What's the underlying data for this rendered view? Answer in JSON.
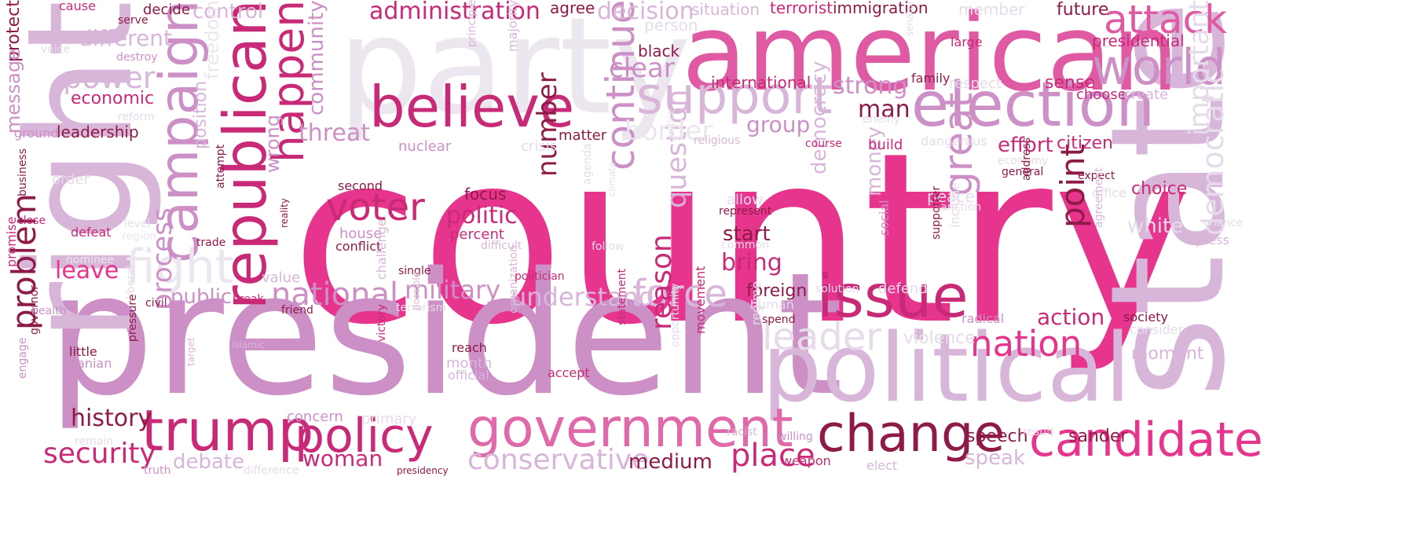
{
  "palette": {
    "magenta": "#e7348d",
    "pink": "#df5aa3",
    "medium_pink": "#e06aa9",
    "deep_rose": "#c92a77",
    "burgundy": "#8e1a48",
    "dark_burgundy": "#7a0f3e",
    "mauve": "#cc8fc6",
    "lilac": "#d8b6d9",
    "pale_lilac": "#e6dbea",
    "very_pale": "#ece6ef",
    "background": "#ffffff"
  },
  "words": [
    {
      "text": "country",
      "color": "magenta"
    },
    {
      "text": "president",
      "color": "mauve"
    },
    {
      "text": "party",
      "color": "very_pale"
    },
    {
      "text": "state",
      "color": "lilac"
    },
    {
      "text": "american",
      "color": "pink"
    },
    {
      "text": "political",
      "color": "lilac"
    },
    {
      "text": "right",
      "color": "lilac"
    },
    {
      "text": "republican",
      "color": "deep_rose"
    },
    {
      "text": "government",
      "color": "medium_pink"
    },
    {
      "text": "campaign",
      "color": "mauve"
    },
    {
      "text": "election",
      "color": "mauve"
    },
    {
      "text": "support",
      "color": "lilac"
    },
    {
      "text": "believe",
      "color": "deep_rose"
    },
    {
      "text": "change",
      "color": "burgundy"
    },
    {
      "text": "trump",
      "color": "deep_rose"
    },
    {
      "text": "issue",
      "color": "deep_rose"
    },
    {
      "text": "policy",
      "color": "deep_rose"
    },
    {
      "text": "candidate",
      "color": "magenta"
    },
    {
      "text": "world",
      "color": "mauve"
    },
    {
      "text": "attack",
      "color": "pink"
    },
    {
      "text": "great",
      "color": "mauve"
    },
    {
      "text": "happen",
      "color": "deep_rose"
    },
    {
      "text": "continue",
      "color": "mauve"
    },
    {
      "text": "leader",
      "color": "pale_lilac"
    },
    {
      "text": "nation",
      "color": "magenta"
    },
    {
      "text": "fight",
      "color": "very_pale"
    },
    {
      "text": "point",
      "color": "burgundy"
    },
    {
      "text": "important",
      "color": "pale_lilac"
    },
    {
      "text": "democratic",
      "color": "pale_lilac"
    },
    {
      "text": "problem",
      "color": "burgundy"
    },
    {
      "text": "force",
      "color": "lilac"
    },
    {
      "text": "voter",
      "color": "deep_rose"
    },
    {
      "text": "power",
      "color": "lilac"
    },
    {
      "text": "security",
      "color": "deep_rose"
    },
    {
      "text": "conservative",
      "color": "lilac"
    },
    {
      "text": "place",
      "color": "deep_rose"
    },
    {
      "text": "national",
      "color": "mauve"
    },
    {
      "text": "military",
      "color": "mauve"
    },
    {
      "text": "understand",
      "color": "lilac"
    },
    {
      "text": "process",
      "color": "mauve"
    },
    {
      "text": "reason",
      "color": "deep_rose"
    },
    {
      "text": "number",
      "color": "burgundy"
    },
    {
      "text": "question",
      "color": "lilac"
    },
    {
      "text": "clear",
      "color": "mauve"
    },
    {
      "text": "administration",
      "color": "deep_rose"
    },
    {
      "text": "decision",
      "color": "lilac"
    },
    {
      "text": "community",
      "color": "mauve"
    },
    {
      "text": "different",
      "color": "lilac"
    },
    {
      "text": "control",
      "color": "lilac"
    },
    {
      "text": "politic",
      "color": "deep_rose"
    },
    {
      "text": "strong",
      "color": "mauve"
    },
    {
      "text": "man",
      "color": "burgundy"
    },
    {
      "text": "group",
      "color": "mauve"
    },
    {
      "text": "threat",
      "color": "mauve"
    },
    {
      "text": "border",
      "color": "very_pale"
    },
    {
      "text": "effort",
      "color": "deep_rose"
    },
    {
      "text": "citizen",
      "color": "deep_rose"
    },
    {
      "text": "history",
      "color": "burgundy"
    },
    {
      "text": "leave",
      "color": "magenta"
    },
    {
      "text": "public",
      "color": "mauve"
    },
    {
      "text": "bring",
      "color": "deep_rose"
    },
    {
      "text": "start",
      "color": "burgundy"
    },
    {
      "text": "democracy",
      "color": "lilac"
    },
    {
      "text": "money",
      "color": "lilac"
    },
    {
      "text": "woman",
      "color": "deep_rose"
    },
    {
      "text": "medium",
      "color": "burgundy"
    },
    {
      "text": "action",
      "color": "deep_rose"
    },
    {
      "text": "sander",
      "color": "burgundy"
    },
    {
      "text": "speech",
      "color": "burgundy"
    },
    {
      "text": "speak",
      "color": "lilac"
    },
    {
      "text": "debate",
      "color": "lilac"
    },
    {
      "text": "moment",
      "color": "lilac"
    },
    {
      "text": "choice",
      "color": "deep_rose"
    },
    {
      "text": "white",
      "color": "pale_lilac"
    },
    {
      "text": "freedom",
      "color": "very_pale"
    },
    {
      "text": "protect",
      "color": "burgundy"
    },
    {
      "text": "message",
      "color": "mauve"
    },
    {
      "text": "economic",
      "color": "deep_rose"
    },
    {
      "text": "leadership",
      "color": "burgundy"
    },
    {
      "text": "position",
      "color": "lilac"
    },
    {
      "text": "wrong",
      "color": "mauve"
    },
    {
      "text": "foreign",
      "color": "burgundy"
    },
    {
      "text": "violence",
      "color": "pale_lilac"
    },
    {
      "text": "immigration",
      "color": "burgundy"
    },
    {
      "text": "terrorist",
      "color": "deep_rose"
    },
    {
      "text": "international",
      "color": "deep_rose"
    },
    {
      "text": "presidential",
      "color": "deep_rose"
    },
    {
      "text": "future",
      "color": "burgundy"
    },
    {
      "text": "sense",
      "color": "deep_rose"
    },
    {
      "text": "situation",
      "color": "lilac"
    },
    {
      "text": "agree",
      "color": "burgundy"
    },
    {
      "text": "member",
      "color": "pale_lilac"
    },
    {
      "text": "black",
      "color": "burgundy"
    },
    {
      "text": "person",
      "color": "pale_lilac"
    },
    {
      "text": "large",
      "color": "deep_rose"
    },
    {
      "text": "family",
      "color": "burgundy"
    },
    {
      "text": "respect",
      "color": "pale_lilac"
    },
    {
      "text": "choose",
      "color": "deep_rose"
    },
    {
      "text": "create",
      "color": "lilac"
    },
    {
      "text": "build",
      "color": "deep_rose"
    },
    {
      "text": "dangerous",
      "color": "pale_lilac"
    },
    {
      "text": "economy",
      "color": "pale_lilac"
    },
    {
      "text": "general",
      "color": "burgundy"
    },
    {
      "text": "expect",
      "color": "burgundy"
    },
    {
      "text": "office",
      "color": "pale_lilac"
    },
    {
      "text": "peace",
      "color": "pale_lilac"
    },
    {
      "text": "sanction",
      "color": "pale_lilac"
    },
    {
      "text": "address",
      "color": "burgundy"
    },
    {
      "text": "chance",
      "color": "pale_lilac"
    },
    {
      "text": "press",
      "color": "lilac"
    },
    {
      "text": "agreement",
      "color": "lilac"
    },
    {
      "text": "society",
      "color": "burgundy"
    },
    {
      "text": "consider",
      "color": "pale_lilac"
    },
    {
      "text": "radical",
      "color": "mauve"
    },
    {
      "text": "supporter",
      "color": "burgundy"
    },
    {
      "text": "include",
      "color": "pale_lilac"
    },
    {
      "text": "social",
      "color": "mauve"
    },
    {
      "text": "defend",
      "color": "pale_lilac"
    },
    {
      "text": "solution",
      "color": "pale_lilac"
    },
    {
      "text": "human",
      "color": "pale_lilac"
    },
    {
      "text": "spend",
      "color": "burgundy"
    },
    {
      "text": "regime",
      "color": "pale_lilac"
    },
    {
      "text": "racist",
      "color": "lilac"
    },
    {
      "text": "willing",
      "color": "mauve"
    },
    {
      "text": "weapon",
      "color": "deep_rose"
    },
    {
      "text": "elect",
      "color": "lilac"
    },
    {
      "text": "result",
      "color": "pale_lilac"
    },
    {
      "text": "represent",
      "color": "burgundy"
    },
    {
      "text": "common",
      "color": "pale_lilac"
    },
    {
      "text": "allow",
      "color": "pale_lilac"
    },
    {
      "text": "course",
      "color": "deep_rose"
    },
    {
      "text": "enemy",
      "color": "pale_lilac"
    },
    {
      "text": "religious",
      "color": "lilac"
    },
    {
      "text": "justice",
      "color": "pale_lilac"
    },
    {
      "text": "climate",
      "color": "pale_lilac"
    },
    {
      "text": "agenda",
      "color": "pale_lilac"
    },
    {
      "text": "follow",
      "color": "pale_lilac"
    },
    {
      "text": "opportunity",
      "color": "pale_lilac"
    },
    {
      "text": "movement",
      "color": "deep_rose"
    },
    {
      "text": "statement",
      "color": "deep_rose"
    },
    {
      "text": "accept",
      "color": "deep_rose"
    },
    {
      "text": "organization",
      "color": "lilac"
    },
    {
      "text": "politician",
      "color": "deep_rose"
    },
    {
      "text": "difficult",
      "color": "lilac"
    },
    {
      "text": "focus",
      "color": "burgundy"
    },
    {
      "text": "percent",
      "color": "deep_rose"
    },
    {
      "text": "matter",
      "color": "burgundy"
    },
    {
      "text": "crisis",
      "color": "pale_lilac"
    },
    {
      "text": "nuclear",
      "color": "mauve"
    },
    {
      "text": "second",
      "color": "burgundy"
    },
    {
      "text": "house",
      "color": "mauve"
    },
    {
      "text": "conflict",
      "color": "burgundy"
    },
    {
      "text": "majority",
      "color": "lilac"
    },
    {
      "text": "principle",
      "color": "lilac"
    },
    {
      "text": "single",
      "color": "burgundy"
    },
    {
      "text": "challenge",
      "color": "lilac"
    },
    {
      "text": "terrorism",
      "color": "pale_lilac"
    },
    {
      "text": "possible",
      "color": "lilac"
    },
    {
      "text": "reach",
      "color": "burgundy"
    },
    {
      "text": "month",
      "color": "lilac"
    },
    {
      "text": "official",
      "color": "lilac"
    },
    {
      "text": "primary",
      "color": "pale_lilac"
    },
    {
      "text": "concern",
      "color": "mauve"
    },
    {
      "text": "presidency",
      "color": "burgundy"
    },
    {
      "text": "difference",
      "color": "pale_lilac"
    },
    {
      "text": "victory",
      "color": "deep_rose"
    },
    {
      "text": "value",
      "color": "lilac"
    },
    {
      "text": "break",
      "color": "deep_rose"
    },
    {
      "text": "friend",
      "color": "burgundy"
    },
    {
      "text": "reality",
      "color": "burgundy"
    },
    {
      "text": "attempt",
      "color": "burgundy"
    },
    {
      "text": "trade",
      "color": "burgundy"
    },
    {
      "text": "islamic",
      "color": "lilac"
    },
    {
      "text": "civil",
      "color": "burgundy"
    },
    {
      "text": "liberal",
      "color": "pale_lilac"
    },
    {
      "text": "pressure",
      "color": "burgundy"
    },
    {
      "text": "target",
      "color": "lilac"
    },
    {
      "text": "truth",
      "color": "mauve"
    },
    {
      "text": "remain",
      "color": "pale_lilac"
    },
    {
      "text": "little",
      "color": "burgundy"
    },
    {
      "text": "iranian",
      "color": "mauve"
    },
    {
      "text": "engage",
      "color": "mauve"
    },
    {
      "text": "governor",
      "color": "burgundy"
    },
    {
      "text": "promise",
      "color": "deep_rose"
    },
    {
      "text": "health",
      "color": "mauve"
    },
    {
      "text": "nominee",
      "color": "very_pale"
    },
    {
      "text": "region",
      "color": "very_pale"
    },
    {
      "text": "level",
      "color": "pale_lilac"
    },
    {
      "text": "defeat",
      "color": "deep_rose"
    },
    {
      "text": "close",
      "color": "deep_rose"
    },
    {
      "text": "business",
      "color": "burgundy"
    },
    {
      "text": "order",
      "color": "pale_lilac"
    },
    {
      "text": "ground",
      "color": "mauve"
    },
    {
      "text": "reform",
      "color": "pale_lilac"
    },
    {
      "text": "destroy",
      "color": "mauve"
    },
    {
      "text": "voice",
      "color": "pale_lilac"
    },
    {
      "text": "cause",
      "color": "deep_rose"
    },
    {
      "text": "serve",
      "color": "burgundy"
    },
    {
      "text": "decide",
      "color": "burgundy"
    },
    {
      "text": "senator",
      "color": "pale_lilac"
    }
  ]
}
